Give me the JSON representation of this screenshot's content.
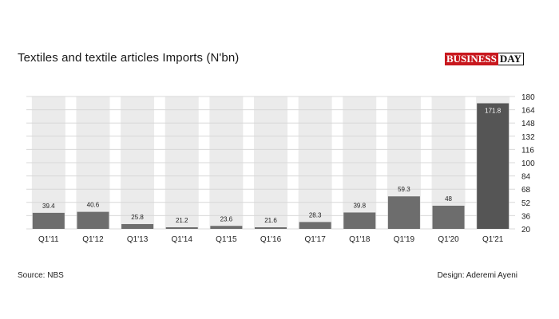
{
  "header": {
    "title": "Textiles and textile articles Imports (N'bn)",
    "logo_part_a": "BUSINESS",
    "logo_part_b": "DAY"
  },
  "footer": {
    "source": "Source: NBS",
    "design": "Design: Aderemi Ayeni"
  },
  "colors": {
    "bar_default": "#6d6d6d",
    "bar_highlight": "#555555",
    "background_band": "#ebebeb"
  },
  "chart_data": {
    "type": "bar",
    "title": "Textiles and textile articles Imports (N'bn)",
    "categories": [
      "Q1'11",
      "Q1'12",
      "Q1'13",
      "Q1'14",
      "Q1'15",
      "Q1'16",
      "Q1'17",
      "Q1'18",
      "Q1'19",
      "Q1'20",
      "Q1'21"
    ],
    "values": [
      39.4,
      40.6,
      25.8,
      21.2,
      23.6,
      21.6,
      28.3,
      39.8,
      59.3,
      48,
      171.8
    ],
    "value_labels": [
      "39.4",
      "40.6",
      "25.8",
      "21.2",
      "23.6",
      "21.6",
      "28.3",
      "39.8",
      "59.3",
      "48",
      "171.8"
    ],
    "yticks": [
      "20",
      "36",
      "52",
      "68",
      "84",
      "100",
      "116",
      "132",
      "148",
      "164",
      "180"
    ],
    "ylim": [
      20,
      180
    ],
    "yaxis_position": "right",
    "grid": true,
    "legend": "none"
  }
}
